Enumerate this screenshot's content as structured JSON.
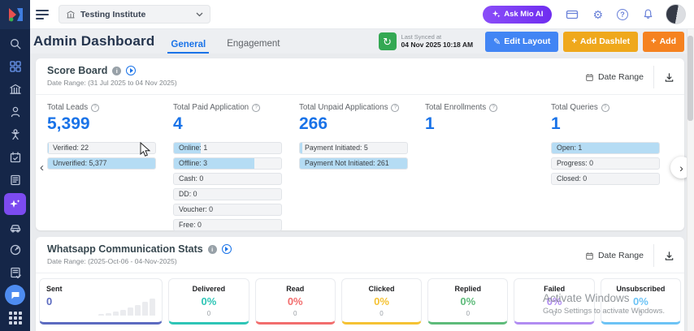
{
  "topbar": {
    "institute": "Testing Institute",
    "ask_ai": "Ask Mio AI"
  },
  "header": {
    "title": "Admin Dashboard",
    "tabs": [
      {
        "label": "General",
        "active": true
      },
      {
        "label": "Engagement",
        "active": false
      }
    ],
    "sync": {
      "line1": "Last Synced at",
      "line2": "04 Nov 2025 10:18 AM"
    },
    "edit_layout": "Edit Layout",
    "add_dashlet": "Add Dashlet",
    "add": "Add"
  },
  "scoreboard": {
    "title": "Score Board",
    "date_range_label": "Date Range: (31 Jul 2025 to 04 Nov 2025)",
    "date_range_button": "Date Range",
    "stats": [
      {
        "label": "Total Leads",
        "value": "5,399",
        "rows": [
          {
            "text": "Verified: 22",
            "fill": 1
          },
          {
            "text": "Unverified: 5,377",
            "fill": 100
          }
        ]
      },
      {
        "label": "Total Paid Application",
        "value": "4",
        "rows": [
          {
            "text": "Online: 1",
            "fill": 25
          },
          {
            "text": "Offline: 3",
            "fill": 75
          },
          {
            "text": "Cash: 0",
            "fill": 0
          },
          {
            "text": "DD: 0",
            "fill": 0
          },
          {
            "text": "Voucher: 0",
            "fill": 0
          },
          {
            "text": "Free: 0",
            "fill": 0
          }
        ]
      },
      {
        "label": "Total Unpaid Applications",
        "value": "266",
        "rows": [
          {
            "text": "Payment Initiated: 5",
            "fill": 2
          },
          {
            "text": "Payment Not Initiated: 261",
            "fill": 100
          }
        ]
      },
      {
        "label": "Total Enrollments",
        "value": "1",
        "rows": []
      },
      {
        "label": "Total Queries",
        "value": "1",
        "rows": [
          {
            "text": "Open: 1",
            "fill": 100
          },
          {
            "text": "Progress: 0",
            "fill": 0
          },
          {
            "text": "Closed: 0",
            "fill": 0
          }
        ]
      }
    ]
  },
  "whatsapp": {
    "title": "Whatsapp Communication Stats",
    "date_range_label": "Date Range: (2025-Oct-06 - 04-Nov-2025)",
    "date_range_button": "Date Range",
    "cards": [
      {
        "label": "Sent",
        "value": "0",
        "sub": "",
        "color": "#5c6bc0"
      },
      {
        "label": "Delivered",
        "value": "0%",
        "sub": "0",
        "color": "#2ec5b6"
      },
      {
        "label": "Read",
        "value": "0%",
        "sub": "0",
        "color": "#f26d6d"
      },
      {
        "label": "Clicked",
        "value": "0%",
        "sub": "0",
        "color": "#f5c233"
      },
      {
        "label": "Replied",
        "value": "0%",
        "sub": "0",
        "color": "#5dbb7a"
      },
      {
        "label": "Failed",
        "value": "0%",
        "sub": "0",
        "color": "#b18cf2"
      },
      {
        "label": "Unsubscribed",
        "value": "0%",
        "sub": "0",
        "color": "#6cc3f5"
      }
    ]
  },
  "watermark": {
    "line1": "Activate Windows",
    "line2": "Go to Settings to activate Windows."
  },
  "icons": {
    "sidebar": [
      "search-icon",
      "dashboard-grid-icon",
      "institute-building-icon",
      "person-icon",
      "referral-network-icon",
      "calendar-check-icon",
      "notes-document-icon",
      "ai-sparkle-icon",
      "vehicle-icon",
      "performance-gauge-icon",
      "report-check-icon",
      "chat-bubble-icon",
      "apps-grid-icon"
    ],
    "topbar": [
      "hamburger-menu-icon",
      "building-icon",
      "chevron-down-icon",
      "sparkle-icon",
      "billing-card-icon",
      "settings-gear-icon",
      "help-icon",
      "notifications-bell-icon"
    ],
    "section": [
      "info-icon",
      "play-icon",
      "calendar-icon",
      "download-icon",
      "carousel-left-icon",
      "carousel-right-icon"
    ]
  },
  "colors": {
    "accent_blue": "#1a73e8",
    "bar_fill": "#b5dcf4",
    "sidebar_bg": "#152648",
    "active_purple": "#7c4bf0",
    "sync_green": "#34a853",
    "edit_blue": "#4285f4",
    "dashlet_amber": "#efa81c",
    "add_orange": "#f58220"
  }
}
